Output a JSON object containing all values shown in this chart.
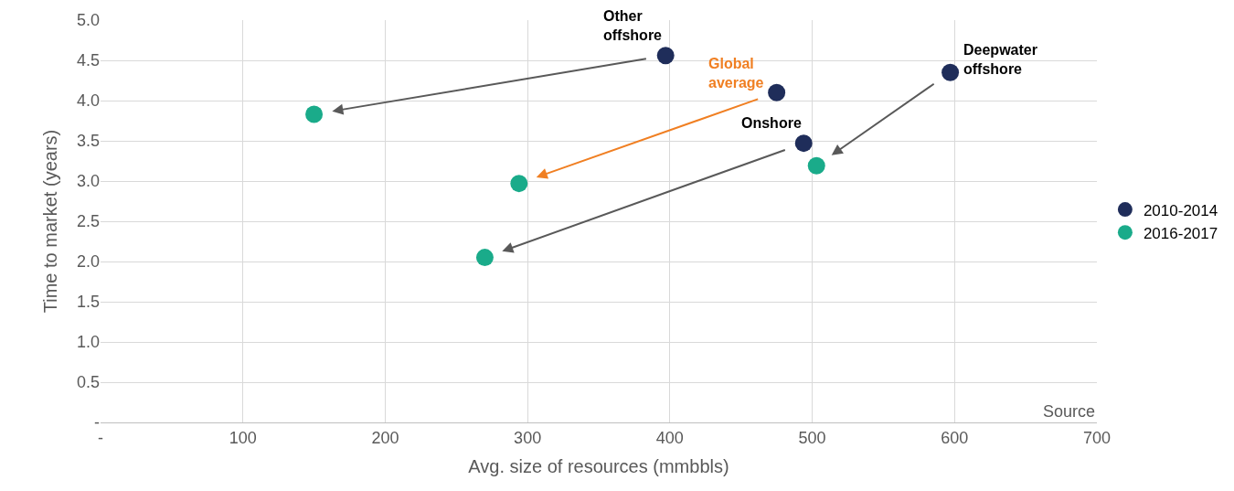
{
  "chart_data": {
    "type": "scatter",
    "xlabel": "Avg. size of resources (mmbbls)",
    "ylabel": "Time to market (years)",
    "series": [
      {
        "name": "2010-2014",
        "color": "#1f2d5a",
        "x": [
          397,
          475,
          494,
          597
        ],
        "values": [
          4.56,
          4.1,
          3.47,
          4.35
        ]
      },
      {
        "name": "2016-2017",
        "color": "#1aab8a",
        "x": [
          150,
          294,
          270,
          503
        ],
        "values": [
          3.83,
          2.97,
          2.05,
          3.19
        ]
      }
    ],
    "xlim": [
      0,
      700
    ],
    "xticks": [
      {
        "value": 0,
        "label": "-"
      },
      100,
      200,
      300,
      400,
      500,
      600,
      700
    ],
    "ylim": [
      0,
      5
    ],
    "yticks": [
      {
        "value": 0,
        "label": "-"
      },
      {
        "value": 0.5,
        "label": "0.5"
      },
      {
        "value": 1,
        "label": "1.0"
      },
      {
        "value": 1.5,
        "label": "1.5"
      },
      {
        "value": 2,
        "label": "2.0"
      },
      {
        "value": 2.5,
        "label": "2.5"
      },
      {
        "value": 3,
        "label": "3.0"
      },
      {
        "value": 3.5,
        "label": "3.5"
      },
      {
        "value": 4,
        "label": "4.0"
      },
      {
        "value": 4.5,
        "label": "4.5"
      },
      {
        "value": 5,
        "label": "5.0"
      }
    ],
    "annotations": [
      {
        "text": "Other offshore",
        "x": 397,
        "y": 4.56
      },
      {
        "text": "Global average",
        "x": 475,
        "y": 4.1
      },
      {
        "text": "Onshore",
        "x": 494,
        "y": 3.47
      },
      {
        "text": "Deepwater offshore",
        "x": 597,
        "y": 4.35
      },
      "Source"
    ],
    "grid": true,
    "legend": "right",
    "marker": "circle"
  }
}
